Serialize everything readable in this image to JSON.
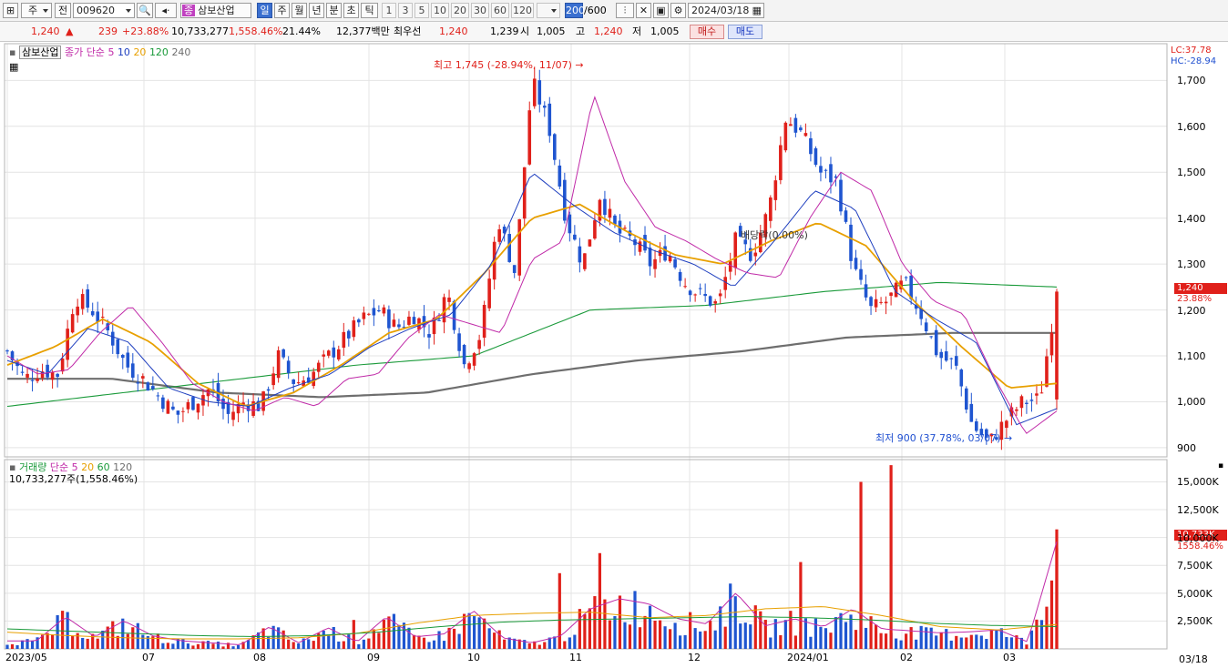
{
  "toolbar": {
    "market": "주",
    "scope": "전",
    "code": "009620",
    "stock_badge": "종",
    "stock_name": "삼보산업",
    "periods": [
      "일",
      "주",
      "월",
      "년",
      "분",
      "초",
      "틱"
    ],
    "intervals": [
      "1",
      "3",
      "5",
      "10",
      "20",
      "30",
      "60",
      "120"
    ],
    "count": "200",
    "count_max": "/600",
    "date": "2024/03/18"
  },
  "quote": {
    "price": "1,240",
    "change": "239",
    "change_pct": "+23.88%",
    "volume": "10,733,277",
    "volume_pct": "1,558.46%",
    "turnover": "21.44%",
    "amount": "12,377백만",
    "best_label": "최우선",
    "best_ask": "1,240",
    "best_bid": "1,239",
    "open_label": "시",
    "open": "1,005",
    "high_label": "고",
    "high": "1,240",
    "low_label": "저",
    "low": "1,005",
    "buy": "매수",
    "sell": "매도"
  },
  "legend": {
    "name": "삼보산업",
    "ma_title": "종가 단순",
    "ma": [
      "5",
      "10",
      "20",
      "120",
      "240"
    ],
    "ma_colors": [
      "#c02aa8",
      "#1f3fbf",
      "#e8a000",
      "#1a9a3a",
      "#6e6e6e"
    ]
  },
  "vol_legend": {
    "title": "거래량",
    "ma_title": "단순",
    "ma": [
      "5",
      "20",
      "60",
      "120"
    ],
    "value": "10,733,277주(1,558.46%)"
  },
  "annotations": {
    "high": "최고 1,745 (-28.94%, 11/07)",
    "low": "최저 900 (37.78%, 03/07)",
    "dividend": "배당락(0.00%)",
    "lc": "LC:37.78",
    "hc": "HC:-28.94",
    "last_price": "1,240",
    "last_pct": "23.88%",
    "last_vol": "10,733K",
    "last_vol_pct": "1558.46%"
  },
  "axis": {
    "price_ticks": [
      "1,700",
      "1,600",
      "1,500",
      "1,400",
      "1,300",
      "1,200",
      "1,100",
      "1,000",
      "900"
    ],
    "volume_ticks": [
      "15,000K",
      "12,500K",
      "10,000K",
      "7,500K",
      "5,000K",
      "2,500K"
    ],
    "months": [
      "2023/05",
      "07",
      "08",
      "09",
      "10",
      "11",
      "12",
      "2024/01",
      "02",
      "03"
    ],
    "end_date": "03/18"
  },
  "colors": {
    "up": "#e0201a",
    "down": "#1f55d0",
    "grid": "#e4e4e4",
    "ma5": "#c02aa8",
    "ma10": "#1f3fbf",
    "ma20": "#e8a000",
    "ma120": "#1a9a3a",
    "ma240": "#6e6e6e"
  },
  "chart_data": {
    "type": "candlestick",
    "period": "daily",
    "x_range": [
      "2023/05",
      "2024/03/18"
    ],
    "price_range": [
      880,
      1780
    ],
    "volume_range": [
      0,
      17000
    ],
    "volume_unit": "K shares",
    "close_anchors": [
      1110,
      1050,
      1070,
      1060,
      1230,
      1200,
      1150,
      1080,
      1050,
      1010,
      970,
      1000,
      1030,
      970,
      1000,
      990,
      1100,
      1040,
      1060,
      1100,
      1140,
      1180,
      1200,
      1160,
      1190,
      1150,
      1240,
      1080,
      1150,
      1400,
      1280,
      1700,
      1600,
      1400,
      1300,
      1450,
      1370,
      1350,
      1300,
      1330,
      1260,
      1230,
      1210,
      1350,
      1320,
      1420,
      1620,
      1580,
      1500,
      1480,
      1290,
      1200,
      1220,
      1260,
      1190,
      1100,
      1080,
      950,
      910,
      960,
      1000,
      1005,
      1240
    ],
    "ma5_anchors": [
      1100,
      1060,
      1070,
      1150,
      1210,
      1130,
      1040,
      1000,
      980,
      1010,
      990,
      1050,
      1060,
      1140,
      1190,
      1170,
      1150,
      1310,
      1350,
      1670,
      1480,
      1380,
      1350,
      1310,
      1280,
      1270,
      1400,
      1500,
      1460,
      1300,
      1220,
      1190,
      1050,
      930,
      980
    ],
    "ma10_anchors": [
      1090,
      1060,
      1160,
      1130,
      1030,
      1000,
      990,
      1030,
      1060,
      1120,
      1160,
      1190,
      1300,
      1500,
      1430,
      1370,
      1330,
      1300,
      1250,
      1350,
      1460,
      1420,
      1240,
      1180,
      1130,
      950,
      985
    ],
    "ma20_anchors": [
      1080,
      1120,
      1180,
      1130,
      1040,
      990,
      1020,
      1080,
      1150,
      1180,
      1280,
      1400,
      1430,
      1370,
      1320,
      1300,
      1350,
      1390,
      1340,
      1220,
      1120,
      1030,
      1040
    ],
    "ma120_anchors": [
      990,
      1020,
      1050,
      1080,
      1100,
      1200,
      1210,
      1240,
      1260,
      1250
    ],
    "ma240_anchors": [
      1050,
      1050,
      1020,
      1010,
      1020,
      1060,
      1090,
      1110,
      1140,
      1150,
      1150
    ],
    "volume_anchors": [
      800,
      800,
      3200,
      1200,
      2800,
      1300,
      800,
      600,
      400,
      2200,
      600,
      2100,
      700,
      3200,
      1200,
      1500,
      3800,
      1100,
      600,
      1300,
      4000,
      5000,
      4500,
      3000,
      2500,
      5600,
      2300,
      3000,
      2200,
      4000,
      2000,
      1800,
      1600,
      1700,
      1900,
      700,
      10700
    ],
    "spike_volumes": [
      {
        "x": "09/1",
        "v": 2600
      },
      {
        "x": "11/1",
        "v": 6800
      },
      {
        "x": "11/07",
        "v": 8600
      },
      {
        "x": "12/20",
        "v": 7800
      },
      {
        "x": "12/28",
        "v": 15000
      },
      {
        "x": "01/04",
        "v": 16500
      },
      {
        "x": "03/18",
        "v": 10733
      }
    ]
  }
}
